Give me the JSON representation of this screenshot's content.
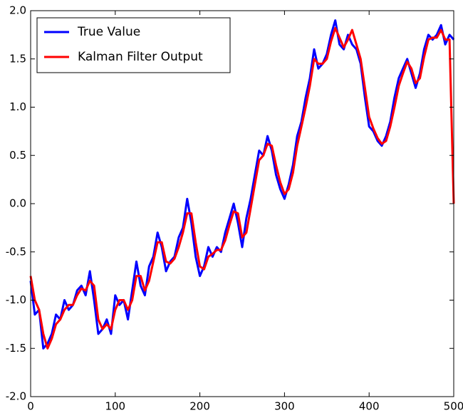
{
  "chart_data": {
    "type": "line",
    "x": [
      0,
      5,
      10,
      15,
      20,
      25,
      30,
      35,
      40,
      45,
      50,
      55,
      60,
      65,
      70,
      75,
      80,
      85,
      90,
      95,
      100,
      105,
      110,
      115,
      120,
      125,
      130,
      135,
      140,
      145,
      150,
      155,
      160,
      165,
      170,
      175,
      180,
      185,
      190,
      195,
      200,
      205,
      210,
      215,
      220,
      225,
      230,
      235,
      240,
      245,
      250,
      255,
      260,
      265,
      270,
      275,
      280,
      285,
      290,
      295,
      300,
      305,
      310,
      315,
      320,
      325,
      330,
      335,
      340,
      345,
      350,
      355,
      360,
      365,
      370,
      375,
      380,
      385,
      390,
      395,
      400,
      405,
      410,
      415,
      420,
      425,
      430,
      435,
      440,
      445,
      450,
      455,
      460,
      465,
      470,
      475,
      480,
      485,
      490,
      495,
      500
    ],
    "series": [
      {
        "name": "True Value",
        "color": "#0000ff",
        "values": [
          -0.8,
          -1.15,
          -1.1,
          -1.5,
          -1.45,
          -1.35,
          -1.15,
          -1.2,
          -1.0,
          -1.1,
          -1.05,
          -0.9,
          -0.85,
          -0.95,
          -0.7,
          -1.0,
          -1.35,
          -1.3,
          -1.2,
          -1.35,
          -0.95,
          -1.05,
          -1.0,
          -1.2,
          -0.9,
          -0.6,
          -0.85,
          -0.95,
          -0.65,
          -0.55,
          -0.3,
          -0.45,
          -0.7,
          -0.6,
          -0.55,
          -0.35,
          -0.25,
          0.05,
          -0.2,
          -0.55,
          -0.75,
          -0.65,
          -0.45,
          -0.55,
          -0.45,
          -0.5,
          -0.3,
          -0.15,
          0.0,
          -0.2,
          -0.45,
          -0.15,
          0.05,
          0.3,
          0.55,
          0.5,
          0.7,
          0.55,
          0.3,
          0.15,
          0.05,
          0.2,
          0.4,
          0.7,
          0.85,
          1.1,
          1.3,
          1.6,
          1.4,
          1.45,
          1.55,
          1.75,
          1.9,
          1.65,
          1.6,
          1.75,
          1.65,
          1.6,
          1.45,
          1.1,
          0.8,
          0.75,
          0.65,
          0.6,
          0.7,
          0.85,
          1.1,
          1.3,
          1.4,
          1.5,
          1.35,
          1.2,
          1.35,
          1.6,
          1.75,
          1.7,
          1.75,
          1.85,
          1.65,
          1.75,
          1.7
        ]
      },
      {
        "name": "Kalman Filter Output",
        "color": "#ff0000",
        "values": [
          -0.75,
          -1.0,
          -1.1,
          -1.35,
          -1.5,
          -1.4,
          -1.25,
          -1.2,
          -1.1,
          -1.05,
          -1.05,
          -0.95,
          -0.88,
          -0.9,
          -0.8,
          -0.85,
          -1.2,
          -1.3,
          -1.25,
          -1.3,
          -1.1,
          -1.0,
          -1.0,
          -1.1,
          -1.0,
          -0.75,
          -0.75,
          -0.9,
          -0.8,
          -0.6,
          -0.4,
          -0.4,
          -0.6,
          -0.62,
          -0.57,
          -0.45,
          -0.3,
          -0.1,
          -0.1,
          -0.4,
          -0.65,
          -0.68,
          -0.55,
          -0.52,
          -0.48,
          -0.48,
          -0.38,
          -0.22,
          -0.08,
          -0.1,
          -0.35,
          -0.3,
          -0.05,
          0.2,
          0.45,
          0.5,
          0.62,
          0.6,
          0.4,
          0.22,
          0.1,
          0.15,
          0.32,
          0.6,
          0.8,
          1.0,
          1.22,
          1.5,
          1.45,
          1.45,
          1.5,
          1.68,
          1.82,
          1.72,
          1.62,
          1.7,
          1.8,
          1.65,
          1.5,
          1.2,
          0.9,
          0.78,
          0.68,
          0.62,
          0.65,
          0.8,
          1.0,
          1.22,
          1.35,
          1.47,
          1.4,
          1.25,
          1.3,
          1.52,
          1.7,
          1.72,
          1.72,
          1.8,
          1.7,
          1.7,
          0.0
        ]
      }
    ],
    "xlim": [
      0,
      500
    ],
    "xticks": [
      0,
      100,
      200,
      300,
      400,
      500
    ],
    "ylim": [
      -2,
      2
    ],
    "yticks": [
      {
        "value": -2,
        "label": "-2.0"
      },
      -1.5,
      {
        "value": -1,
        "label": "-1.0"
      },
      -0.5,
      {
        "value": 0,
        "label": "0.0"
      },
      0.5,
      {
        "value": 1,
        "label": "1.0"
      },
      1.5,
      {
        "value": 2,
        "label": "2.0"
      }
    ],
    "legend": "upper left",
    "grid": false
  }
}
